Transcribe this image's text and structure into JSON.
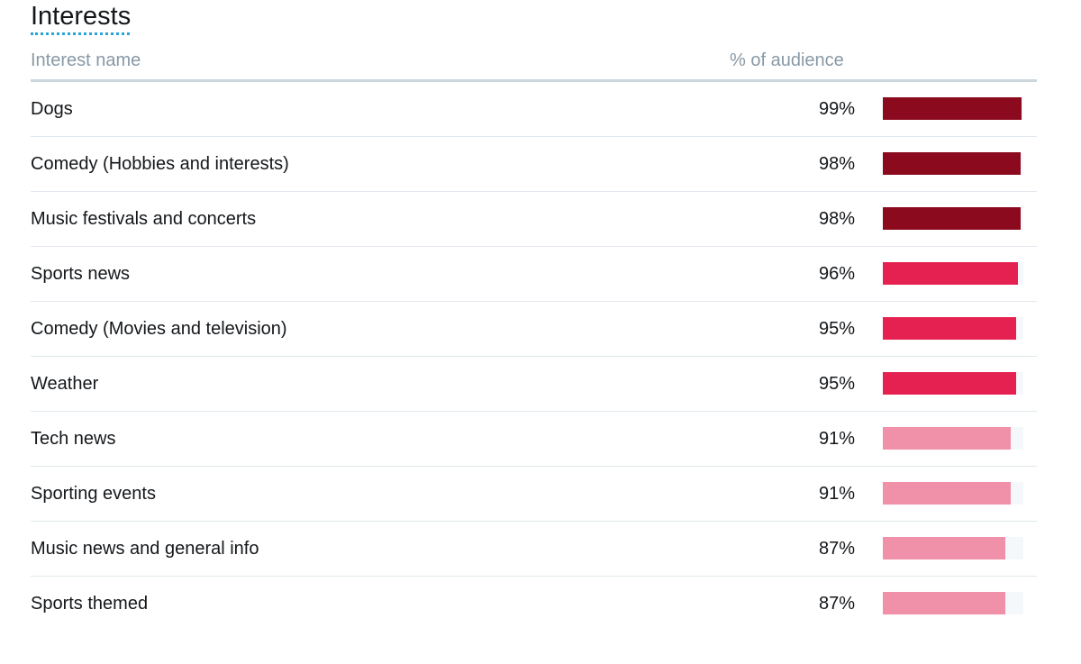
{
  "title": "Interests",
  "header": {
    "interest_name": "Interest name",
    "percent_audience": "% of audience"
  },
  "colors": {
    "dark": "#8b0a1e",
    "medium": "#e52152",
    "light": "#f191a9",
    "track": "#f5f8fa"
  },
  "rows": [
    {
      "name": "Dogs",
      "pct_label": "99%",
      "fraction": 0.99,
      "tier": "dark"
    },
    {
      "name": "Comedy (Hobbies and interests)",
      "pct_label": "98%",
      "fraction": 0.98,
      "tier": "dark"
    },
    {
      "name": "Music festivals and concerts",
      "pct_label": "98%",
      "fraction": 0.98,
      "tier": "dark"
    },
    {
      "name": "Sports news",
      "pct_label": "96%",
      "fraction": 0.96,
      "tier": "medium"
    },
    {
      "name": "Comedy (Movies and television)",
      "pct_label": "95%",
      "fraction": 0.95,
      "tier": "medium"
    },
    {
      "name": "Weather",
      "pct_label": "95%",
      "fraction": 0.95,
      "tier": "medium"
    },
    {
      "name": "Tech news",
      "pct_label": "91%",
      "fraction": 0.91,
      "tier": "light"
    },
    {
      "name": "Sporting events",
      "pct_label": "91%",
      "fraction": 0.91,
      "tier": "light"
    },
    {
      "name": "Music news and general info",
      "pct_label": "87%",
      "fraction": 0.87,
      "tier": "light"
    },
    {
      "name": "Sports themed",
      "pct_label": "87%",
      "fraction": 0.87,
      "tier": "light"
    }
  ]
}
